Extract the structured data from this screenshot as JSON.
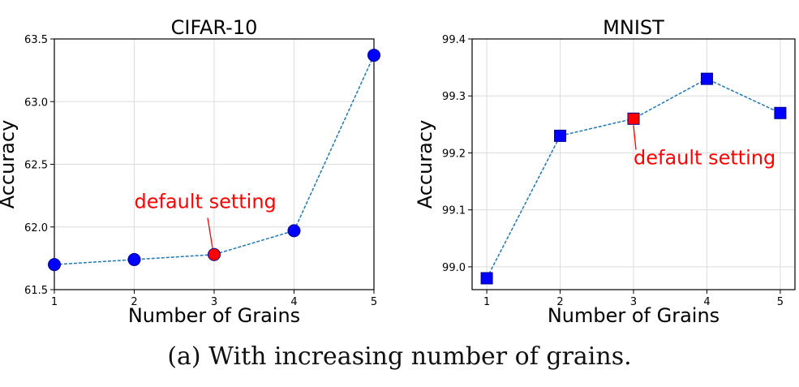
{
  "caption": "(a) With increasing number of grains.",
  "chart_data": [
    {
      "type": "line",
      "title": "CIFAR-10",
      "xlabel": "Number of Grains",
      "ylabel": "Accuracy",
      "x": [
        1,
        2,
        3,
        4,
        5
      ],
      "xticks": [
        "1",
        "2",
        "3",
        "4",
        "5"
      ],
      "xlim": [
        1,
        5
      ],
      "ylim": [
        61.5,
        63.5
      ],
      "yticks": [
        "61.5",
        "62.0",
        "62.5",
        "63.0",
        "63.5"
      ],
      "ytick_values": [
        61.5,
        62.0,
        62.5,
        63.0,
        63.5
      ],
      "grid": true,
      "marker": "circle",
      "series": [
        {
          "values": [
            61.7,
            61.74,
            61.78,
            61.97,
            63.37
          ],
          "color": "#0000ff",
          "line_color": "#1f77b4"
        }
      ],
      "highlight": {
        "index": 2,
        "color": "#ff0000"
      },
      "annotation": {
        "text": "default setting",
        "color": "#ff0000",
        "x": 3,
        "y": 61.78,
        "text_x": 2.0,
        "text_y": 62.15
      }
    },
    {
      "type": "line",
      "title": "MNIST",
      "xlabel": "Number of Grains",
      "ylabel": "Accuracy",
      "x": [
        1,
        2,
        3,
        4,
        5
      ],
      "xticks": [
        "1",
        "2",
        "3",
        "4",
        "5"
      ],
      "xlim": [
        0.8,
        5.2
      ],
      "ylim": [
        98.96,
        99.4
      ],
      "yticks": [
        "99.0",
        "99.1",
        "99.2",
        "99.3",
        "99.4"
      ],
      "ytick_values": [
        99.0,
        99.1,
        99.2,
        99.3,
        99.4
      ],
      "grid": true,
      "marker": "square",
      "series": [
        {
          "values": [
            98.98,
            99.23,
            99.26,
            99.33,
            99.27
          ],
          "color": "#0000ff",
          "line_color": "#1f77b4"
        }
      ],
      "highlight": {
        "index": 2,
        "color": "#ff0000"
      },
      "annotation": {
        "text": "default setting",
        "color": "#ff0000",
        "x": 3,
        "y": 99.26,
        "text_x": 3.0,
        "text_y": 99.18
      }
    }
  ]
}
